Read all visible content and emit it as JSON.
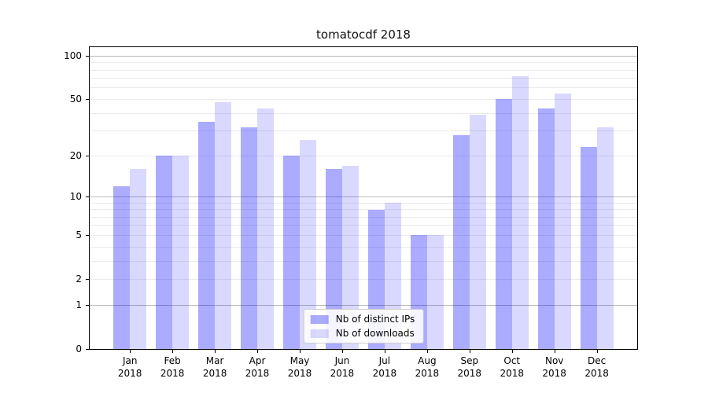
{
  "page": {
    "background": "#ffffff"
  },
  "chart_data": {
    "type": "bar",
    "title": "tomatocdf 2018",
    "categories": [
      "Jan",
      "Feb",
      "Mar",
      "Apr",
      "May",
      "Jun",
      "Jul",
      "Aug",
      "Sep",
      "Oct",
      "Nov",
      "Dec"
    ],
    "category_year": "2018",
    "series": [
      {
        "name": "Nb of distinct IPs",
        "color": "rgba(0,0,255,0.33)",
        "values": [
          12,
          20,
          35,
          32,
          20,
          16,
          8,
          5,
          28,
          50,
          43,
          23
        ]
      },
      {
        "name": "Nb of downloads",
        "color": "rgba(0,0,255,0.15)",
        "values": [
          16,
          20,
          48,
          43,
          26,
          17,
          9,
          5,
          39,
          72,
          55,
          32
        ]
      }
    ],
    "yscale": "log1p",
    "ylim": [
      0,
      115
    ],
    "yticks": [
      {
        "label": "100",
        "value": 100
      },
      {
        "label": "50",
        "value": 50
      },
      {
        "label": "20",
        "value": 20
      },
      {
        "label": "10",
        "value": 10
      },
      {
        "label": "5",
        "value": 5
      },
      {
        "label": "2",
        "value": 2
      },
      {
        "label": "1",
        "value": 1
      },
      {
        "label": "0",
        "value": 0
      }
    ],
    "gridlines_minor": [
      2,
      3,
      4,
      5,
      6,
      7,
      8,
      9,
      20,
      30,
      40,
      50,
      60,
      70,
      80,
      90
    ],
    "gridlines_major": [
      1,
      10,
      100
    ],
    "grid_minor_color": "#eaeaef",
    "grid_major_color": "#bbbbbb",
    "grid": true,
    "legend_position": "lower center",
    "xlabel": "",
    "ylabel": ""
  }
}
